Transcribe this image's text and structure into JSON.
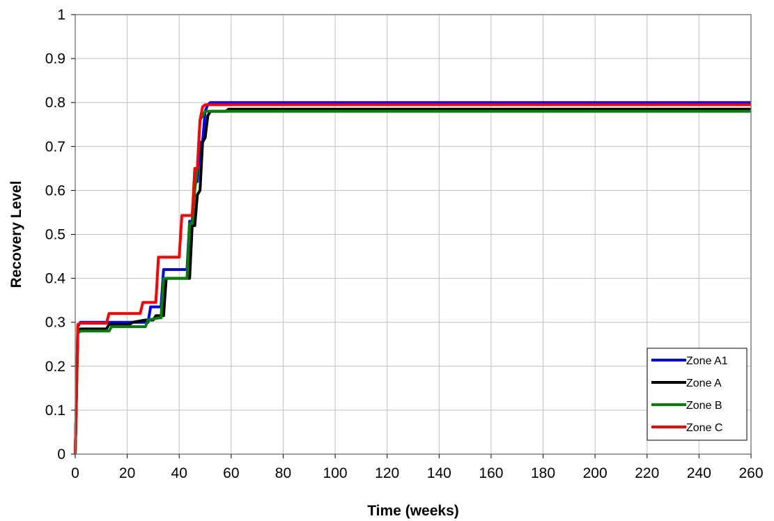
{
  "chart_data": {
    "type": "line",
    "title": "",
    "xlabel": "Time (weeks)",
    "ylabel": "Recovery Level",
    "xlim": [
      0,
      260
    ],
    "ylim": [
      0,
      1
    ],
    "x_ticks": [
      "0",
      "20",
      "40",
      "60",
      "80",
      "100",
      "120",
      "140",
      "160",
      "180",
      "200",
      "220",
      "240",
      "260"
    ],
    "y_ticks": [
      "0",
      "0.1",
      "0.2",
      "0.3",
      "0.4",
      "0.5",
      "0.6",
      "0.7",
      "0.8",
      "0.9",
      "1"
    ],
    "grid": true,
    "legend_position": "bottom-right",
    "series": [
      {
        "name": "Zone A1",
        "color": "#0000ff",
        "points": [
          [
            0,
            0
          ],
          [
            1,
            0.29
          ],
          [
            2,
            0.3
          ],
          [
            12,
            0.3
          ],
          [
            13,
            0.3
          ],
          [
            28,
            0.3
          ],
          [
            29,
            0.335
          ],
          [
            30,
            0.335
          ],
          [
            33,
            0.335
          ],
          [
            34,
            0.42
          ],
          [
            42,
            0.42
          ],
          [
            43,
            0.42
          ],
          [
            44,
            0.53
          ],
          [
            45,
            0.53
          ],
          [
            46,
            0.62
          ],
          [
            47,
            0.62
          ],
          [
            48,
            0.71
          ],
          [
            49,
            0.71
          ],
          [
            50,
            0.78
          ],
          [
            51,
            0.795
          ],
          [
            52,
            0.8
          ],
          [
            260,
            0.8
          ]
        ]
      },
      {
        "name": "Zone A",
        "color": "#000000",
        "points": [
          [
            0,
            0
          ],
          [
            1,
            0.28
          ],
          [
            2,
            0.285
          ],
          [
            12,
            0.285
          ],
          [
            13,
            0.295
          ],
          [
            21,
            0.295
          ],
          [
            22,
            0.3
          ],
          [
            27,
            0.305
          ],
          [
            30,
            0.305
          ],
          [
            31,
            0.315
          ],
          [
            33,
            0.315
          ],
          [
            34,
            0.315
          ],
          [
            35,
            0.4
          ],
          [
            44,
            0.4
          ],
          [
            45,
            0.52
          ],
          [
            46,
            0.52
          ],
          [
            47,
            0.59
          ],
          [
            48,
            0.6
          ],
          [
            49,
            0.71
          ],
          [
            50,
            0.72
          ],
          [
            51,
            0.77
          ],
          [
            52,
            0.78
          ],
          [
            58,
            0.78
          ],
          [
            59,
            0.785
          ],
          [
            260,
            0.785
          ]
        ]
      },
      {
        "name": "Zone B",
        "color": "#008000",
        "points": [
          [
            0,
            0
          ],
          [
            1,
            0.275
          ],
          [
            2,
            0.28
          ],
          [
            13,
            0.28
          ],
          [
            14,
            0.29
          ],
          [
            27,
            0.29
          ],
          [
            28,
            0.305
          ],
          [
            32,
            0.31
          ],
          [
            33,
            0.31
          ],
          [
            34,
            0.4
          ],
          [
            42,
            0.4
          ],
          [
            43,
            0.4
          ],
          [
            44,
            0.525
          ],
          [
            45,
            0.525
          ],
          [
            46,
            0.6
          ],
          [
            47,
            0.65
          ],
          [
            48,
            0.76
          ],
          [
            49,
            0.77
          ],
          [
            50,
            0.78
          ],
          [
            260,
            0.78
          ]
        ]
      },
      {
        "name": "Zone C",
        "color": "#ff0000",
        "points": [
          [
            0,
            0
          ],
          [
            1,
            0.295
          ],
          [
            2,
            0.298
          ],
          [
            12,
            0.298
          ],
          [
            13,
            0.32
          ],
          [
            25,
            0.32
          ],
          [
            26,
            0.345
          ],
          [
            31,
            0.345
          ],
          [
            32,
            0.448
          ],
          [
            40,
            0.448
          ],
          [
            41,
            0.543
          ],
          [
            45,
            0.543
          ],
          [
            46,
            0.65
          ],
          [
            47,
            0.65
          ],
          [
            48,
            0.76
          ],
          [
            49,
            0.79
          ],
          [
            50,
            0.795
          ],
          [
            260,
            0.795
          ]
        ]
      }
    ]
  }
}
